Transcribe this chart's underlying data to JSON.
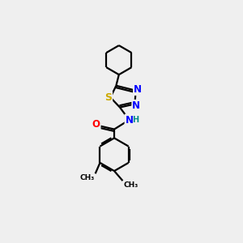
{
  "background_color": "#efefef",
  "line_color": "#000000",
  "bond_width": 1.6,
  "atom_colors": {
    "N": "#0000ff",
    "O": "#ff0000",
    "S": "#ccaa00",
    "H": "#008b8b",
    "C": "#000000"
  },
  "font_size_atoms": 8.5
}
